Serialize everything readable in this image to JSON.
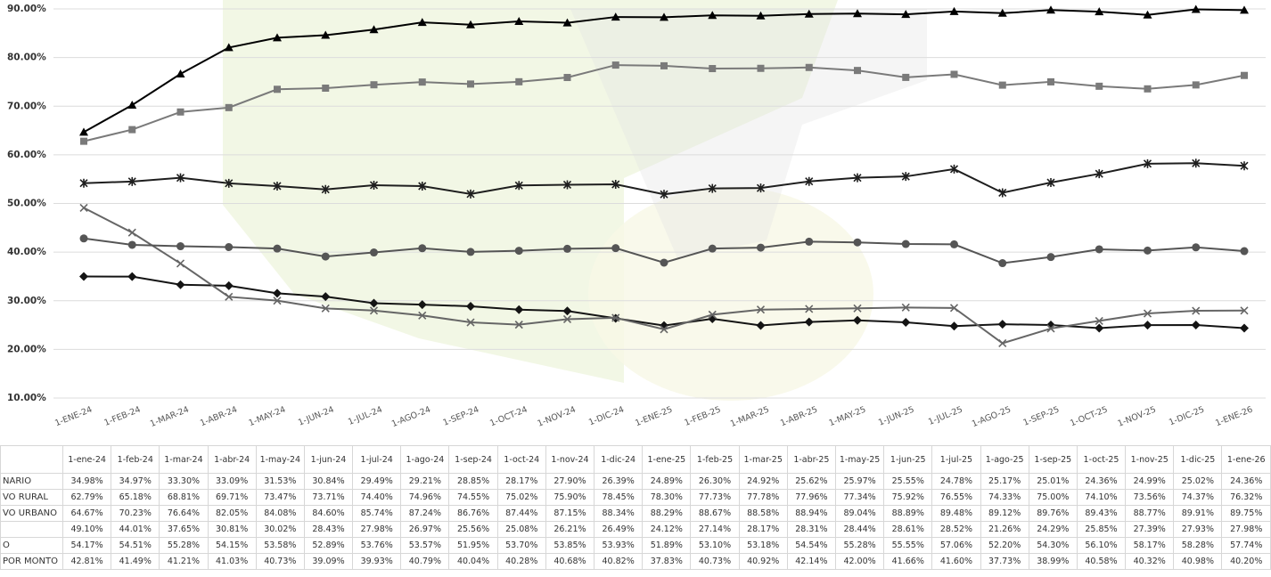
{
  "chart_data": {
    "type": "line",
    "ylim": [
      0.1,
      0.9
    ],
    "y_ticks": [
      "90.00%",
      "80.00%",
      "70.00%",
      "60.00%",
      "50.00%",
      "40.00%",
      "30.00%",
      "20.00%",
      "10.00%"
    ],
    "grid": true,
    "x_tick_labels": [
      "1-ENE-24",
      "1-FEB-24",
      "1-MAR-24",
      "1-ABR-24",
      "1-MAY-24",
      "1-JUN-24",
      "1-JUL-24",
      "1-AGO-24",
      "1-SEP-24",
      "1-OCT-24",
      "1-NOV-24",
      "1-DIC-24",
      "1-ENE-25",
      "1-FEB-25",
      "1-MAR-25",
      "1-ABR-25",
      "1-MAY-25",
      "1-JUN-25",
      "1-JUL-25",
      "1-AGO-25",
      "1-SEP-25",
      "1-OCT-25",
      "1-NOV-25",
      "1-DIC-25",
      "1-ENE-26"
    ],
    "categories": [
      "1-ene-24",
      "1-feb-24",
      "1-mar-24",
      "1-abr-24",
      "1-may-24",
      "1-jun-24",
      "1-jul-24",
      "1-ago-24",
      "1-sep-24",
      "1-oct-24",
      "1-nov-24",
      "1-dic-24",
      "1-ene-25",
      "1-feb-25",
      "1-mar-25",
      "1-abr-25",
      "1-may-25",
      "1-jun-25",
      "1-jul-25",
      "1-ago-25",
      "1-sep-25",
      "1-oct-25",
      "1-nov-25",
      "1-dic-25",
      "1-ene-26"
    ],
    "series": [
      {
        "name": "NARIO",
        "marker": "diamond",
        "color": "#141414",
        "values": [
          34.98,
          34.97,
          33.3,
          33.09,
          31.53,
          30.84,
          29.49,
          29.21,
          28.85,
          28.17,
          27.9,
          26.39,
          24.89,
          26.3,
          24.92,
          25.62,
          25.97,
          25.55,
          24.78,
          25.17,
          25.01,
          24.36,
          24.99,
          25.02,
          24.36
        ],
        "labels": [
          "34.98%",
          "34.97%",
          "33.30%",
          "33.09%",
          "31.53%",
          "30.84%",
          "29.49%",
          "29.21%",
          "28.85%",
          "28.17%",
          "27.90%",
          "26.39%",
          "24.89%",
          "26.30%",
          "24.92%",
          "25.62%",
          "25.97%",
          "25.55%",
          "24.78%",
          "25.17%",
          "25.01%",
          "24.36%",
          "24.99%",
          "25.02%",
          "24.36%"
        ]
      },
      {
        "name": "VO RURAL",
        "marker": "square",
        "color": "#7a7a7a",
        "values": [
          62.79,
          65.18,
          68.81,
          69.71,
          73.47,
          73.71,
          74.4,
          74.96,
          74.55,
          75.02,
          75.9,
          78.45,
          78.3,
          77.73,
          77.78,
          77.96,
          77.34,
          75.92,
          76.55,
          74.33,
          75.0,
          74.1,
          73.56,
          74.37,
          76.32
        ],
        "labels": [
          "62.79%",
          "65.18%",
          "68.81%",
          "69.71%",
          "73.47%",
          "73.71%",
          "74.40%",
          "74.96%",
          "74.55%",
          "75.02%",
          "75.90%",
          "78.45%",
          "78.30%",
          "77.73%",
          "77.78%",
          "77.96%",
          "77.34%",
          "75.92%",
          "76.55%",
          "74.33%",
          "75.00%",
          "74.10%",
          "73.56%",
          "74.37%",
          "76.32%"
        ]
      },
      {
        "name": "VO URBANO",
        "marker": "triangle",
        "color": "#000000",
        "values": [
          64.67,
          70.23,
          76.64,
          82.05,
          84.08,
          84.6,
          85.74,
          87.24,
          86.76,
          87.44,
          87.15,
          88.34,
          88.29,
          88.67,
          88.58,
          88.94,
          89.04,
          88.89,
          89.48,
          89.12,
          89.76,
          89.43,
          88.77,
          89.91,
          89.75
        ],
        "labels": [
          "64.67%",
          "70.23%",
          "76.64%",
          "82.05%",
          "84.08%",
          "84.60%",
          "85.74%",
          "87.24%",
          "86.76%",
          "87.44%",
          "87.15%",
          "88.34%",
          "88.29%",
          "88.67%",
          "88.58%",
          "88.94%",
          "89.04%",
          "88.89%",
          "89.48%",
          "89.12%",
          "89.76%",
          "89.43%",
          "88.77%",
          "89.91%",
          "89.75%"
        ]
      },
      {
        "name": "",
        "marker": "x",
        "color": "#666666",
        "values": [
          49.1,
          44.01,
          37.65,
          30.81,
          30.02,
          28.43,
          27.98,
          26.97,
          25.56,
          25.08,
          26.21,
          26.49,
          24.12,
          27.14,
          28.17,
          28.31,
          28.44,
          28.61,
          28.52,
          21.26,
          24.29,
          25.85,
          27.39,
          27.93,
          27.98
        ],
        "labels": [
          "49.10%",
          "44.01%",
          "37.65%",
          "30.81%",
          "30.02%",
          "28.43%",
          "27.98%",
          "26.97%",
          "25.56%",
          "25.08%",
          "26.21%",
          "26.49%",
          "24.12%",
          "27.14%",
          "28.17%",
          "28.31%",
          "28.44%",
          "28.61%",
          "28.52%",
          "21.26%",
          "24.29%",
          "25.85%",
          "27.39%",
          "27.93%",
          "27.98%"
        ]
      },
      {
        "name": "O",
        "marker": "star",
        "color": "#1e1e1e",
        "values": [
          54.17,
          54.51,
          55.28,
          54.15,
          53.58,
          52.89,
          53.76,
          53.57,
          51.95,
          53.7,
          53.85,
          53.93,
          51.89,
          53.1,
          53.18,
          54.54,
          55.28,
          55.55,
          57.06,
          52.2,
          54.3,
          56.1,
          58.17,
          58.28,
          57.74
        ],
        "labels": [
          "54.17%",
          "54.51%",
          "55.28%",
          "54.15%",
          "53.58%",
          "52.89%",
          "53.76%",
          "53.57%",
          "51.95%",
          "53.70%",
          "53.85%",
          "53.93%",
          "51.89%",
          "53.10%",
          "53.18%",
          "54.54%",
          "55.28%",
          "55.55%",
          "57.06%",
          "52.20%",
          "54.30%",
          "56.10%",
          "58.17%",
          "58.28%",
          "57.74%"
        ]
      },
      {
        "name": "POR MONTO",
        "marker": "circle",
        "color": "#555555",
        "values": [
          42.81,
          41.49,
          41.21,
          41.03,
          40.73,
          39.09,
          39.93,
          40.79,
          40.04,
          40.28,
          40.68,
          40.82,
          37.83,
          40.73,
          40.92,
          42.14,
          42.0,
          41.66,
          41.6,
          37.73,
          38.99,
          40.58,
          40.32,
          40.98,
          40.2
        ],
        "labels": [
          "42.81%",
          "41.49%",
          "41.21%",
          "41.03%",
          "40.73%",
          "39.09%",
          "39.93%",
          "40.79%",
          "40.04%",
          "40.28%",
          "40.68%",
          "40.82%",
          "37.83%",
          "40.73%",
          "40.92%",
          "42.14%",
          "42.00%",
          "41.66%",
          "41.60%",
          "37.73%",
          "38.99%",
          "40.58%",
          "40.32%",
          "40.98%",
          "40.20%"
        ]
      }
    ]
  }
}
